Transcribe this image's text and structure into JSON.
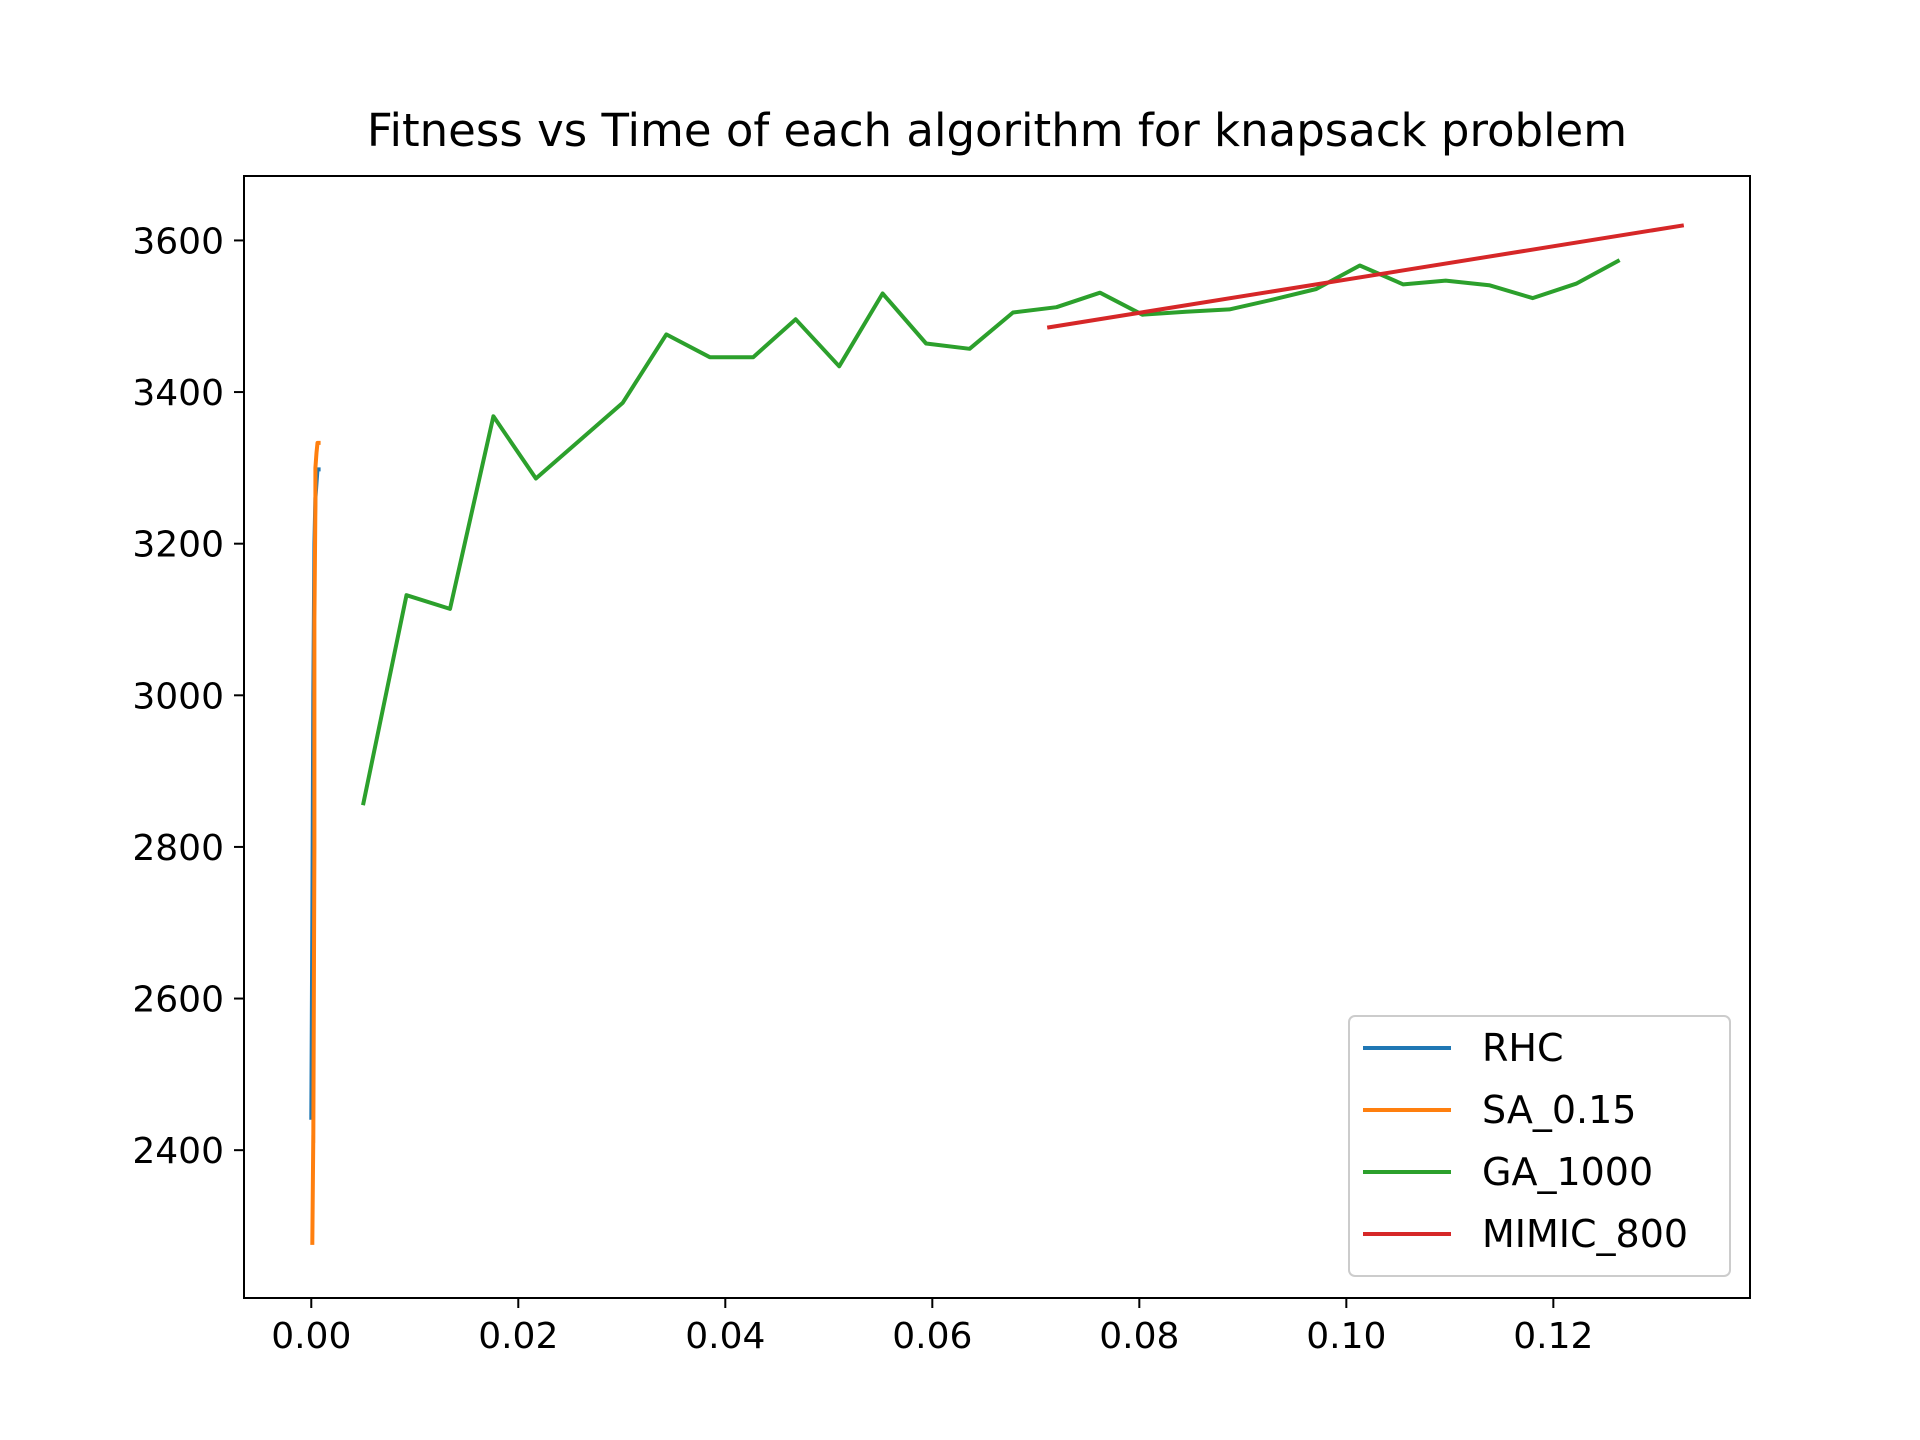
{
  "chart_data": {
    "type": "line",
    "title": "Fitness vs Time of each algorithm for knapsack problem",
    "xlabel": "",
    "ylabel": "",
    "xlim": [
      -0.0065,
      0.139
    ],
    "ylim": [
      2205,
      3685
    ],
    "xticks": [
      0.0,
      0.02,
      0.04,
      0.06,
      0.08,
      0.1,
      0.12
    ],
    "xtick_labels": [
      "0.00",
      "0.02",
      "0.04",
      "0.06",
      "0.08",
      "0.10",
      "0.12"
    ],
    "yticks": [
      2400,
      2600,
      2800,
      3000,
      3200,
      3400,
      3600
    ],
    "ytick_labels": [
      "2400",
      "2600",
      "2800",
      "3000",
      "3200",
      "3400",
      "3600"
    ],
    "grid": false,
    "legend_position": "lower-right",
    "series": [
      {
        "name": "RHC",
        "color": "#1f77b4",
        "points": [
          [
            0.0,
            2440
          ],
          [
            0.0001,
            2700
          ],
          [
            0.0002,
            3000
          ],
          [
            0.0003,
            3200
          ],
          [
            0.0004,
            3260
          ],
          [
            0.0005,
            3280
          ],
          [
            0.0006,
            3298
          ],
          [
            0.0009,
            3298
          ]
        ]
      },
      {
        "name": "SA_0.15",
        "color": "#ff7f0e",
        "points": [
          [
            0.0001,
            2275
          ],
          [
            0.0002,
            2420
          ],
          [
            0.0002,
            2410
          ],
          [
            0.0003,
            2800
          ],
          [
            0.0003,
            3100
          ],
          [
            0.0004,
            3250
          ],
          [
            0.0004,
            3300
          ],
          [
            0.0005,
            3320
          ],
          [
            0.0006,
            3333
          ],
          [
            0.0009,
            3333
          ]
        ]
      },
      {
        "name": "GA_1000",
        "color": "#2ca02c",
        "points": [
          [
            0.005,
            2855
          ],
          [
            0.0092,
            3132
          ],
          [
            0.0134,
            3114
          ],
          [
            0.0176,
            3368
          ],
          [
            0.0217,
            3286
          ],
          [
            0.0259,
            3336
          ],
          [
            0.0301,
            3386
          ],
          [
            0.0343,
            3476
          ],
          [
            0.0385,
            3446
          ],
          [
            0.0427,
            3446
          ],
          [
            0.0468,
            3496
          ],
          [
            0.051,
            3434
          ],
          [
            0.0552,
            3530
          ],
          [
            0.0594,
            3464
          ],
          [
            0.0636,
            3457
          ],
          [
            0.0678,
            3505
          ],
          [
            0.072,
            3512
          ],
          [
            0.0762,
            3531
          ],
          [
            0.0803,
            3502
          ],
          [
            0.0845,
            3506
          ],
          [
            0.0887,
            3509
          ],
          [
            0.0929,
            3522
          ],
          [
            0.0971,
            3536
          ],
          [
            0.1013,
            3567
          ],
          [
            0.1055,
            3542
          ],
          [
            0.1096,
            3547
          ],
          [
            0.1138,
            3541
          ],
          [
            0.118,
            3524
          ],
          [
            0.1222,
            3543
          ],
          [
            0.1264,
            3574
          ]
        ]
      },
      {
        "name": "MIMIC_800",
        "color": "#d62728",
        "points": [
          [
            0.0711,
            3485
          ],
          [
            0.1326,
            3620
          ]
        ]
      }
    ]
  }
}
